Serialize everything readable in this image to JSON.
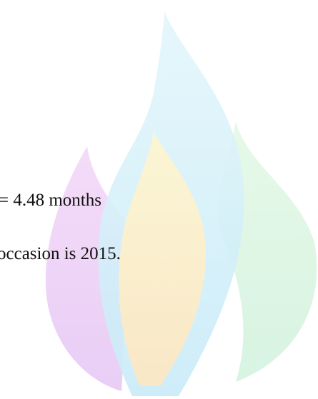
{
  "lines": [
    "= 4.48 months",
    "occasion is 2015."
  ]
}
